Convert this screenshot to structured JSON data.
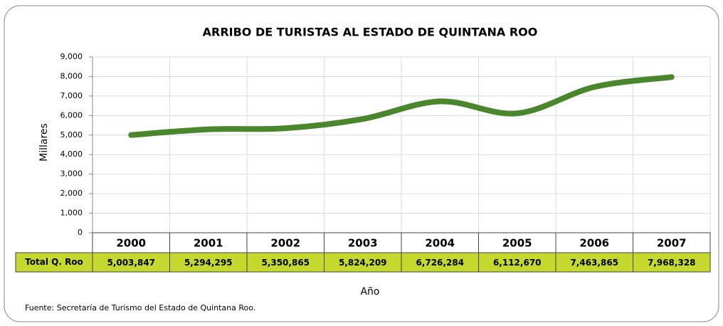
{
  "chart_data": {
    "type": "line",
    "title": "ARRIBO DE TURISTAS AL ESTADO DE QUINTANA ROO",
    "x_label": "Año",
    "y_label": "Millares",
    "source": "Fuente: Secretaría de Turismo del Estado de Quintana Roo.",
    "categories": [
      "2000",
      "2001",
      "2002",
      "2003",
      "2004",
      "2005",
      "2006",
      "2007"
    ],
    "series": [
      {
        "name": "Total Q. Roo",
        "color": "#4a862b",
        "values": [
          5003.847,
          5294.295,
          5350.865,
          5824.209,
          6726.284,
          6112.67,
          7463.865,
          7968.328
        ],
        "value_labels": [
          "5,003,847",
          "5,294,295",
          "5,350,865",
          "5,824,209",
          "6,726,284",
          "6,112,670",
          "7,463,865",
          "7,968,328"
        ]
      }
    ],
    "ylim": [
      0,
      9000
    ],
    "yticks": [
      0,
      {
        "value": 1000,
        "label": "1,000"
      },
      {
        "value": 2000,
        "label": "2,000"
      },
      {
        "value": 3000,
        "label": "3,000"
      },
      {
        "value": 4000,
        "label": "4,000"
      },
      {
        "value": 5000,
        "label": "5,000"
      },
      {
        "value": 6000,
        "label": "6,000"
      },
      {
        "value": 7000,
        "label": "7,000"
      },
      {
        "value": 8000,
        "label": "8,000"
      },
      {
        "value": 9000,
        "label": "9,000"
      }
    ],
    "grid": true,
    "smooth": true
  }
}
